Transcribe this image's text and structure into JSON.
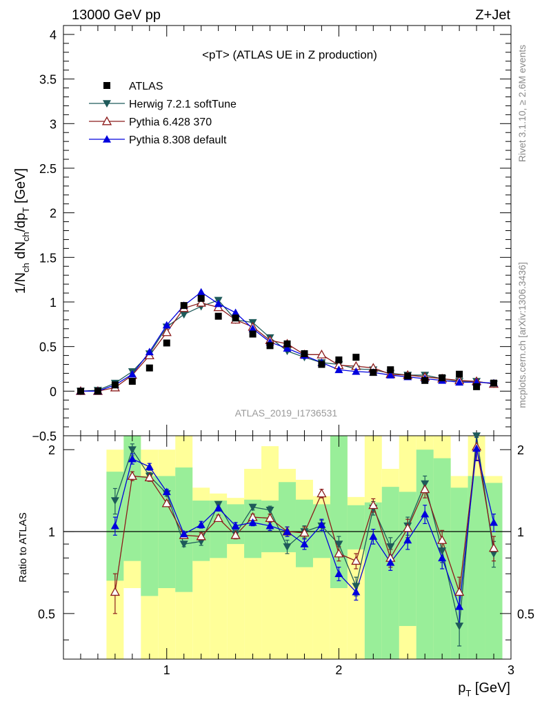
{
  "header": {
    "energy": "13000 GeV pp",
    "process": "Z+Jet"
  },
  "side": {
    "rivet": "Rivet 3.1.10, ≥ 2.6M events",
    "mcplots": "mcplots.cern.ch [arXiv:1306.3436]"
  },
  "colors": {
    "atlas": "#000000",
    "herwig": "#1e5a5a",
    "pythia6": "#8b1a1a",
    "pythia8": "#0000dd",
    "band_inner": "#99ee99",
    "band_outer": "#ffff99"
  },
  "chart_data": [
    {
      "type": "scatter",
      "panel": "main",
      "title": "<pT> (ATLAS UE in Z production)",
      "watermark": "ATLAS_2019_I1736531",
      "xlabel": "p_T [GeV]",
      "ylabel": "1/N_ch dN_ch/dp_T [GeV]",
      "xlim": [
        0.4,
        3.0
      ],
      "ylim": [
        -0.5,
        4.1
      ],
      "x_ticks": [
        1,
        2,
        3
      ],
      "y_ticks": [
        -0.5,
        0,
        0.5,
        1,
        1.5,
        2,
        2.5,
        3,
        3.5,
        4
      ],
      "legend_position": "top-left",
      "x": [
        0.5,
        0.6,
        0.7,
        0.8,
        0.9,
        1.0,
        1.1,
        1.2,
        1.3,
        1.4,
        1.5,
        1.6,
        1.7,
        1.8,
        1.9,
        2.0,
        2.1,
        2.2,
        2.3,
        2.4,
        2.5,
        2.6,
        2.7,
        2.8,
        2.9
      ],
      "series": [
        {
          "name": "ATLAS",
          "marker": "square",
          "color": "#000000",
          "values": [
            0.0,
            0.0,
            0.07,
            0.11,
            0.26,
            0.54,
            0.96,
            1.04,
            0.84,
            0.82,
            0.64,
            0.51,
            0.53,
            0.42,
            0.3,
            0.35,
            0.38,
            0.21,
            0.24,
            0.17,
            0.12,
            0.15,
            0.19,
            0.05,
            0.09
          ]
        },
        {
          "name": "Herwig 7.2.1 softTune",
          "marker": "triangle-down",
          "color": "#1e5a5a",
          "values": [
            0.0,
            0.01,
            0.09,
            0.22,
            0.42,
            0.72,
            0.86,
            0.95,
            1.02,
            0.8,
            0.77,
            0.6,
            0.45,
            0.38,
            0.32,
            0.3,
            0.25,
            0.24,
            0.2,
            0.18,
            0.18,
            0.14,
            0.11,
            0.11,
            0.08
          ]
        },
        {
          "name": "Pythia 6.428 370",
          "marker": "triangle-open",
          "color": "#8b1a1a",
          "values": [
            0.0,
            0.0,
            0.04,
            0.18,
            0.4,
            0.66,
            0.93,
            0.99,
            0.94,
            0.8,
            0.72,
            0.57,
            0.53,
            0.41,
            0.41,
            0.29,
            0.28,
            0.26,
            0.19,
            0.18,
            0.16,
            0.14,
            0.12,
            0.11,
            0.08
          ]
        },
        {
          "name": "Pythia 8.308 default",
          "marker": "triangle-up",
          "color": "#0000dd",
          "values": [
            0.0,
            0.0,
            0.07,
            0.19,
            0.44,
            0.74,
            0.96,
            1.11,
            0.98,
            0.88,
            0.7,
            0.55,
            0.48,
            0.4,
            0.32,
            0.24,
            0.22,
            0.21,
            0.18,
            0.16,
            0.14,
            0.12,
            0.1,
            0.1,
            0.09
          ]
        }
      ]
    },
    {
      "type": "line",
      "panel": "ratio",
      "ylabel": "Ratio to ATLAS",
      "xlim": [
        0.4,
        3.0
      ],
      "ylim": [
        0.34,
        2.25
      ],
      "y_ticks": [
        0.5,
        1,
        2
      ],
      "x": [
        0.7,
        0.8,
        0.9,
        1.0,
        1.1,
        1.2,
        1.3,
        1.4,
        1.5,
        1.6,
        1.7,
        1.8,
        1.9,
        2.0,
        2.1,
        2.2,
        2.3,
        2.4,
        2.5,
        2.6,
        2.7,
        2.8,
        2.9
      ],
      "bands": {
        "inner": [
          [
            0.66,
            1.66
          ],
          [
            0.78,
            2.25
          ],
          [
            0.58,
            1.6
          ],
          [
            0.62,
            1.6
          ],
          [
            0.6,
            1.72
          ],
          [
            0.78,
            1.3
          ],
          [
            0.8,
            1.3
          ],
          [
            0.9,
            1.26
          ],
          [
            0.8,
            1.31
          ],
          [
            0.84,
            1.3
          ],
          [
            0.84,
            1.52
          ],
          [
            0.74,
            1.31
          ],
          [
            0.8,
            1.26
          ],
          [
            0.62,
            2.25
          ],
          [
            0.86,
            1.25
          ],
          [
            0.34,
            1.28
          ],
          [
            0.34,
            1.46
          ],
          [
            0.45,
            1.4
          ],
          [
            0.34,
            2.0
          ],
          [
            0.34,
            1.86
          ],
          [
            0.34,
            1.45
          ],
          [
            0.34,
            1.6
          ],
          [
            0.34,
            1.51
          ]
        ],
        "outer": [
          [
            0.34,
            2.0
          ],
          [
            0.62,
            2.25
          ],
          [
            0.34,
            2.0
          ],
          [
            0.34,
            2.0
          ],
          [
            0.34,
            2.25
          ],
          [
            0.34,
            1.45
          ],
          [
            0.34,
            1.38
          ],
          [
            0.34,
            1.33
          ],
          [
            0.34,
            1.7
          ],
          [
            0.34,
            2.06
          ],
          [
            0.34,
            1.7
          ],
          [
            0.34,
            1.55
          ],
          [
            0.34,
            1.35
          ],
          [
            0.34,
            2.25
          ],
          [
            0.34,
            1.34
          ],
          [
            0.34,
            2.25
          ],
          [
            0.34,
            1.7
          ],
          [
            0.34,
            2.25
          ],
          [
            0.34,
            2.25
          ],
          [
            0.34,
            2.25
          ],
          [
            0.34,
            1.6
          ],
          [
            0.34,
            2.25
          ],
          [
            0.34,
            1.6
          ]
        ]
      },
      "series": [
        {
          "name": "Herwig 7.2.1 softTune",
          "marker": "triangle-down",
          "color": "#1e5a5a",
          "values": [
            1.3,
            2.0,
            1.6,
            1.38,
            0.9,
            0.92,
            1.26,
            0.98,
            1.23,
            1.2,
            0.88,
            1.0,
            1.05,
            0.9,
            0.63,
            1.22,
            0.88,
            1.05,
            1.5,
            0.85,
            0.45,
            2.25,
            0.83
          ],
          "errors": [
            0.14,
            0.1,
            0.05,
            0.03,
            0.02,
            0.03,
            0.03,
            0.03,
            0.03,
            0.04,
            0.05,
            0.05,
            0.05,
            0.06,
            0.05,
            0.07,
            0.07,
            0.08,
            0.1,
            0.08,
            0.07,
            0.25,
            0.09
          ]
        },
        {
          "name": "Pythia 6.428 370",
          "marker": "triangle-open",
          "color": "#8b1a1a",
          "values": [
            0.6,
            1.6,
            1.58,
            1.27,
            0.97,
            0.96,
            1.12,
            0.97,
            1.13,
            1.12,
            1.0,
            0.99,
            1.38,
            0.83,
            0.78,
            1.25,
            0.8,
            1.03,
            1.43,
            0.93,
            0.6,
            2.05,
            0.87
          ],
          "errors": [
            0.1,
            0.06,
            0.05,
            0.03,
            0.02,
            0.03,
            0.03,
            0.03,
            0.03,
            0.04,
            0.04,
            0.05,
            0.05,
            0.05,
            0.05,
            0.07,
            0.06,
            0.08,
            0.1,
            0.08,
            0.08,
            0.22,
            0.09
          ]
        },
        {
          "name": "Pythia 8.308 default",
          "marker": "triangle-up",
          "color": "#0000dd",
          "values": [
            1.05,
            1.85,
            1.73,
            1.4,
            0.98,
            1.06,
            1.22,
            1.05,
            1.08,
            1.05,
            1.0,
            0.9,
            1.06,
            0.7,
            0.6,
            0.96,
            0.77,
            0.93,
            1.16,
            0.8,
            0.53,
            2.02,
            1.08
          ],
          "errors": [
            0.08,
            0.08,
            0.05,
            0.03,
            0.02,
            0.03,
            0.03,
            0.03,
            0.03,
            0.04,
            0.04,
            0.04,
            0.05,
            0.04,
            0.04,
            0.06,
            0.05,
            0.07,
            0.09,
            0.07,
            0.07,
            0.2,
            0.08
          ]
        }
      ]
    }
  ]
}
